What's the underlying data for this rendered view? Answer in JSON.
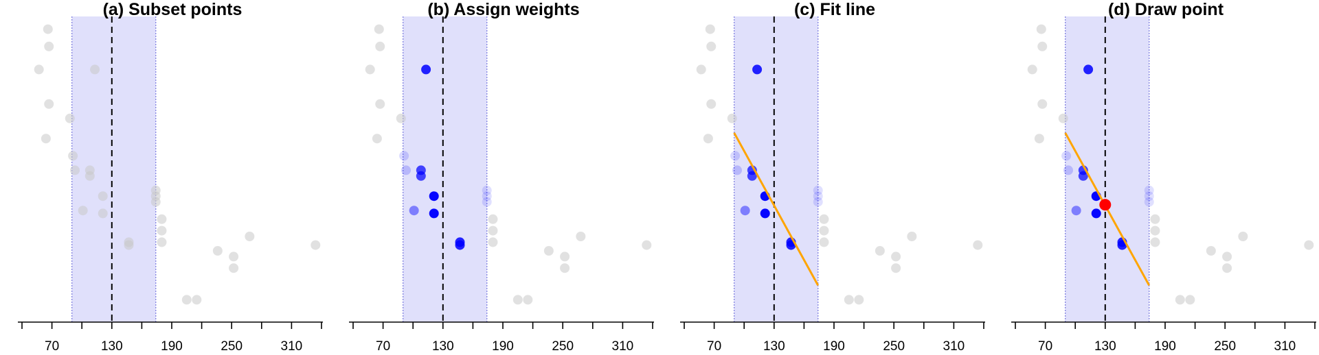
{
  "figure": {
    "background": "#ffffff"
  },
  "style": {
    "window_color": "#e0e0fb",
    "window_edge_color": "#8080e0",
    "center_line_color": "#000000",
    "point_base_color": "#c8c8c8",
    "weighted_color": "#0000ff",
    "fit_color": "#ffa500",
    "drawn_point_color": "#ff0000"
  },
  "chart_data": [
    {
      "type": "scatter",
      "title": "(a) Subset points",
      "step": "subset",
      "xlim": [
        40,
        340
      ],
      "ylim": [
        0,
        100
      ],
      "xticks": [
        70,
        130,
        190,
        250,
        310
      ],
      "window": {
        "center": 130,
        "lower": 90,
        "upper": 174
      },
      "show_weights": false,
      "show_fit": false,
      "show_drawn_point": false
    },
    {
      "type": "scatter",
      "title": "(b) Assign weights",
      "step": "weights",
      "xlim": [
        40,
        340
      ],
      "ylim": [
        0,
        100
      ],
      "xticks": [
        70,
        130,
        190,
        250,
        310
      ],
      "window": {
        "center": 130,
        "lower": 90,
        "upper": 174
      },
      "show_weights": true,
      "show_fit": false,
      "show_drawn_point": false
    },
    {
      "type": "scatter",
      "title": "(c) Fit line",
      "step": "fit",
      "xlim": [
        40,
        340
      ],
      "ylim": [
        0,
        100
      ],
      "xticks": [
        70,
        130,
        190,
        250,
        310
      ],
      "window": {
        "center": 130,
        "lower": 90,
        "upper": 174
      },
      "show_weights": true,
      "show_fit": true,
      "fit_line": {
        "x": [
          90,
          174
        ],
        "y": [
          61,
          8
        ]
      },
      "show_drawn_point": false
    },
    {
      "type": "scatter",
      "title": "(d) Draw point",
      "step": "draw",
      "xlim": [
        40,
        340
      ],
      "ylim": [
        0,
        100
      ],
      "xticks": [
        70,
        130,
        190,
        250,
        310
      ],
      "window": {
        "center": 130,
        "lower": 90,
        "upper": 174
      },
      "show_weights": true,
      "show_fit": true,
      "fit_line": {
        "x": [
          90,
          174
        ],
        "y": [
          61,
          8
        ]
      },
      "show_drawn_point": true,
      "drawn_point": {
        "x": 130,
        "y": 36
      }
    }
  ],
  "points": [
    {
      "x": 66,
      "y": 97
    },
    {
      "x": 67,
      "y": 91
    },
    {
      "x": 57,
      "y": 83
    },
    {
      "x": 113,
      "y": 83
    },
    {
      "x": 67,
      "y": 71
    },
    {
      "x": 88,
      "y": 66
    },
    {
      "x": 64,
      "y": 59
    },
    {
      "x": 91,
      "y": 53
    },
    {
      "x": 93,
      "y": 48
    },
    {
      "x": 108,
      "y": 48
    },
    {
      "x": 108,
      "y": 46
    },
    {
      "x": 121,
      "y": 39
    },
    {
      "x": 101,
      "y": 34
    },
    {
      "x": 121,
      "y": 33
    },
    {
      "x": 147,
      "y": 23
    },
    {
      "x": 147,
      "y": 22
    },
    {
      "x": 174,
      "y": 41
    },
    {
      "x": 174,
      "y": 39
    },
    {
      "x": 174,
      "y": 37
    },
    {
      "x": 180,
      "y": 31
    },
    {
      "x": 180,
      "y": 27
    },
    {
      "x": 180,
      "y": 23
    },
    {
      "x": 268,
      "y": 25
    },
    {
      "x": 236,
      "y": 20
    },
    {
      "x": 252,
      "y": 18
    },
    {
      "x": 252,
      "y": 14
    },
    {
      "x": 334,
      "y": 22
    },
    {
      "x": 205,
      "y": 3
    },
    {
      "x": 215,
      "y": 3
    }
  ]
}
